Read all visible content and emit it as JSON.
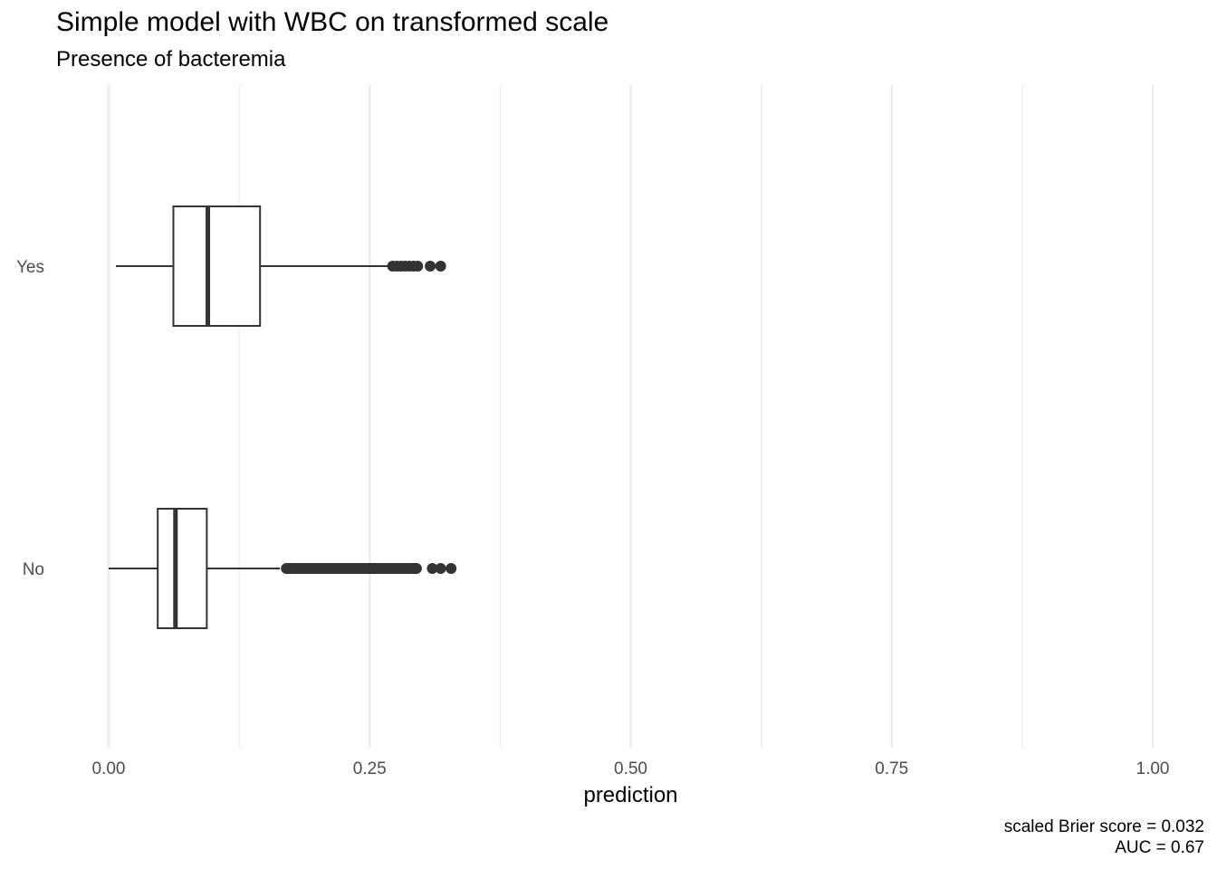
{
  "chart_data": {
    "type": "boxplot",
    "title": "Simple model with WBC on transformed scale",
    "subtitle": "Presence of bacteremia",
    "xlabel": "prediction",
    "ylabel": "",
    "xlim": [
      0,
      1
    ],
    "x_ticks": [
      "0.00",
      "0.25",
      "0.50",
      "0.75",
      "1.00"
    ],
    "x_tick_values": [
      0,
      0.25,
      0.5,
      0.75,
      1.0
    ],
    "x_minor_values": [
      0.125,
      0.375,
      0.625,
      0.875
    ],
    "categories": [
      "No",
      "Yes"
    ],
    "boxes": [
      {
        "category": "Yes",
        "whisker_low": 0.007,
        "q1": 0.062,
        "median": 0.095,
        "q3": 0.145,
        "whisker_high": 0.27,
        "outliers": [
          0.272,
          0.276,
          0.28,
          0.284,
          0.288,
          0.292,
          0.296,
          0.308,
          0.318
        ]
      },
      {
        "category": "No",
        "whisker_low": 0.0,
        "q1": 0.047,
        "median": 0.064,
        "q3": 0.094,
        "whisker_high": 0.164,
        "outlier_range": [
          0.165,
          0.3
        ],
        "outliers": [
          0.31,
          0.318,
          0.328
        ]
      }
    ],
    "grid": true,
    "caption": [
      "scaled Brier score = 0.032",
      "AUC = 0.67"
    ]
  },
  "colors": {
    "grid": "#ebebeb",
    "box": "#333333",
    "text": "#4d4d4d"
  }
}
